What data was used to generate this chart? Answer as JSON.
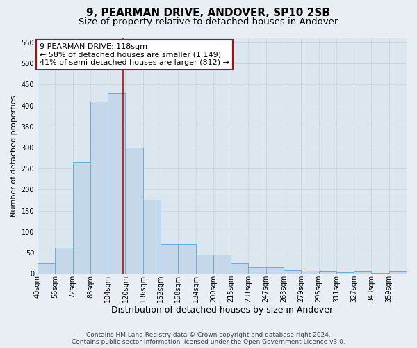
{
  "title": "9, PEARMAN DRIVE, ANDOVER, SP10 2SB",
  "subtitle": "Size of property relative to detached houses in Andover",
  "xlabel": "Distribution of detached houses by size in Andover",
  "ylabel": "Number of detached properties",
  "categories": [
    "40sqm",
    "56sqm",
    "72sqm",
    "88sqm",
    "104sqm",
    "120sqm",
    "136sqm",
    "152sqm",
    "168sqm",
    "184sqm",
    "200sqm",
    "215sqm",
    "231sqm",
    "247sqm",
    "263sqm",
    "279sqm",
    "295sqm",
    "311sqm",
    "327sqm",
    "343sqm",
    "359sqm"
  ],
  "values": [
    25,
    62,
    265,
    410,
    430,
    300,
    175,
    70,
    70,
    45,
    45,
    25,
    15,
    15,
    8,
    7,
    5,
    4,
    5,
    2,
    6
  ],
  "bar_color": "#c5d8ea",
  "bar_edge_color": "#6aaed6",
  "vline_x": 118,
  "vline_color": "#cc0000",
  "annotation_text": "9 PEARMAN DRIVE: 118sqm\n← 58% of detached houses are smaller (1,149)\n41% of semi-detached houses are larger (812) →",
  "annotation_box_facecolor": "#ffffff",
  "annotation_box_edgecolor": "#cc0000",
  "grid_color": "#c8d4de",
  "plot_bg_color": "#dce6ef",
  "fig_bg_color": "#e8eef4",
  "ylim": [
    0,
    560
  ],
  "yticks": [
    0,
    50,
    100,
    150,
    200,
    250,
    300,
    350,
    400,
    450,
    500,
    550
  ],
  "bin_width": 16,
  "title_fontsize": 11,
  "subtitle_fontsize": 9.5,
  "xlabel_fontsize": 9,
  "ylabel_fontsize": 8,
  "tick_fontsize": 7,
  "annotation_fontsize": 8,
  "footer_fontsize": 6.5,
  "footer_text": "Contains HM Land Registry data © Crown copyright and database right 2024.\nContains public sector information licensed under the Open Government Licence v3.0."
}
